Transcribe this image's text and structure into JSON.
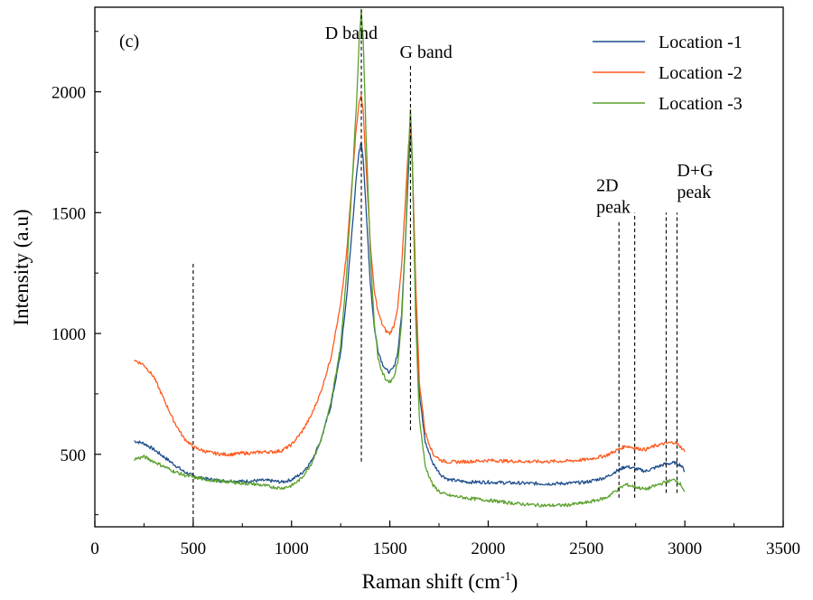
{
  "chart_data": {
    "type": "line",
    "panel_label": "(c)",
    "xlabel": "Raman shift (cm",
    "xlabel_sup": "-1",
    "xlabel_close": ")",
    "ylabel": "Intensity (a.u)",
    "xlim": [
      0,
      3500
    ],
    "ylim": [
      200,
      2350
    ],
    "x_ticks": [
      0,
      500,
      1000,
      1500,
      2000,
      2500,
      3000,
      3500
    ],
    "y_ticks": [
      500,
      1000,
      1500,
      2000
    ],
    "grid": false,
    "legend_position": "top-right",
    "series": [
      {
        "name": "Location -1",
        "color": "#1f4e8c",
        "x": [
          200,
          250,
          300,
          350,
          400,
          450,
          500,
          550,
          600,
          650,
          700,
          750,
          800,
          850,
          900,
          950,
          1000,
          1050,
          1100,
          1150,
          1200,
          1250,
          1280,
          1310,
          1330,
          1345,
          1355,
          1365,
          1380,
          1400,
          1420,
          1440,
          1460,
          1480,
          1500,
          1520,
          1540,
          1560,
          1580,
          1595,
          1605,
          1615,
          1630,
          1650,
          1680,
          1720,
          1760,
          1800,
          1900,
          2000,
          2100,
          2200,
          2300,
          2400,
          2500,
          2600,
          2650,
          2700,
          2750,
          2800,
          2850,
          2900,
          2950,
          2980,
          3000
        ],
        "y": [
          555,
          545,
          520,
          490,
          460,
          430,
          410,
          400,
          395,
          390,
          390,
          388,
          390,
          392,
          390,
          385,
          395,
          420,
          470,
          560,
          700,
          920,
          1150,
          1450,
          1650,
          1760,
          1790,
          1720,
          1500,
          1220,
          1030,
          930,
          880,
          850,
          840,
          860,
          920,
          1080,
          1400,
          1680,
          1850,
          1700,
          1200,
          750,
          550,
          460,
          415,
          395,
          385,
          385,
          382,
          380,
          378,
          380,
          385,
          405,
          430,
          450,
          440,
          430,
          445,
          460,
          465,
          455,
          430
        ]
      },
      {
        "name": "Location -2",
        "color": "#ff5a1f",
        "x": [
          200,
          250,
          300,
          350,
          400,
          450,
          500,
          550,
          600,
          650,
          700,
          750,
          800,
          850,
          900,
          950,
          1000,
          1050,
          1100,
          1150,
          1200,
          1250,
          1280,
          1310,
          1330,
          1345,
          1355,
          1365,
          1380,
          1400,
          1420,
          1440,
          1460,
          1480,
          1500,
          1520,
          1540,
          1560,
          1580,
          1595,
          1605,
          1615,
          1630,
          1650,
          1680,
          1720,
          1760,
          1800,
          1900,
          2000,
          2100,
          2200,
          2300,
          2400,
          2500,
          2600,
          2650,
          2700,
          2750,
          2800,
          2850,
          2900,
          2950,
          2980,
          3000
        ],
        "y": [
          890,
          870,
          820,
          730,
          640,
          570,
          530,
          515,
          505,
          500,
          500,
          505,
          505,
          510,
          510,
          515,
          540,
          590,
          660,
          760,
          900,
          1120,
          1330,
          1650,
          1860,
          1960,
          1990,
          1910,
          1680,
          1380,
          1180,
          1090,
          1040,
          1010,
          1000,
          1030,
          1110,
          1280,
          1560,
          1780,
          1850,
          1700,
          1250,
          800,
          590,
          500,
          475,
          468,
          470,
          475,
          472,
          470,
          470,
          472,
          478,
          495,
          515,
          535,
          525,
          520,
          535,
          545,
          550,
          530,
          510
        ]
      },
      {
        "name": "Location -3",
        "color": "#5aa02c",
        "x": [
          200,
          250,
          300,
          350,
          400,
          450,
          500,
          550,
          600,
          650,
          700,
          750,
          800,
          850,
          900,
          950,
          1000,
          1050,
          1100,
          1150,
          1200,
          1250,
          1280,
          1310,
          1330,
          1345,
          1355,
          1365,
          1380,
          1400,
          1420,
          1440,
          1460,
          1480,
          1500,
          1520,
          1540,
          1560,
          1580,
          1595,
          1605,
          1615,
          1630,
          1650,
          1680,
          1720,
          1760,
          1800,
          1900,
          2000,
          2100,
          2200,
          2300,
          2400,
          2500,
          2600,
          2650,
          2700,
          2750,
          2800,
          2850,
          2900,
          2950,
          2980,
          3000
        ],
        "y": [
          480,
          490,
          470,
          450,
          430,
          415,
          405,
          398,
          392,
          388,
          385,
          380,
          378,
          372,
          365,
          360,
          370,
          400,
          460,
          560,
          710,
          950,
          1250,
          1650,
          1950,
          2230,
          2340,
          2200,
          1800,
          1350,
          1050,
          900,
          840,
          810,
          800,
          820,
          880,
          1050,
          1400,
          1750,
          1930,
          1700,
          1100,
          650,
          450,
          370,
          340,
          330,
          318,
          310,
          300,
          292,
          288,
          290,
          300,
          320,
          350,
          375,
          365,
          355,
          370,
          385,
          395,
          375,
          345
        ]
      }
    ],
    "markers": [
      {
        "x": 500,
        "y_bottom": 200,
        "y_top": 1290
      },
      {
        "x": 1355,
        "y_bottom": 470,
        "y_top": 2340
      },
      {
        "x": 1605,
        "y_bottom": 600,
        "y_top": 2110
      },
      {
        "x": 2665,
        "y_bottom": 320,
        "y_top": 1470
      },
      {
        "x": 2745,
        "y_bottom": 320,
        "y_top": 1500
      },
      {
        "x": 2905,
        "y_bottom": 340,
        "y_top": 1500
      },
      {
        "x": 2960,
        "y_bottom": 340,
        "y_top": 1500
      }
    ],
    "annotations": [
      {
        "x": 1170,
        "y": 2220,
        "lines": [
          "D band"
        ]
      },
      {
        "x": 1550,
        "y": 2140,
        "lines": [
          "G band"
        ]
      },
      {
        "x": 2550,
        "y": 1590,
        "lines": [
          "2D",
          "peak"
        ]
      },
      {
        "x": 2960,
        "y": 1650,
        "lines": [
          "D+G",
          "peak"
        ]
      }
    ]
  }
}
